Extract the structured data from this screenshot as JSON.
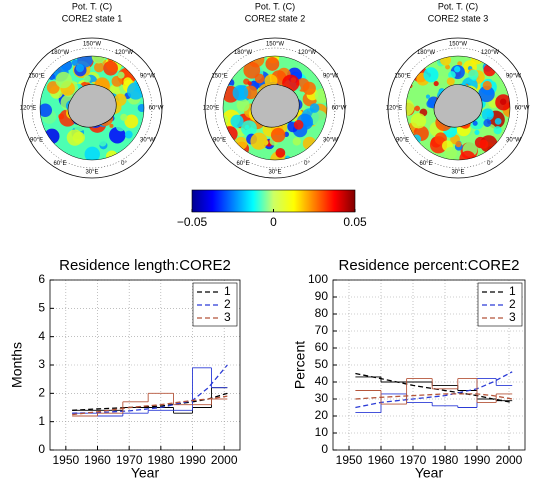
{
  "maps": [
    {
      "title": "Pot. T. (C)",
      "subtitle": "CORE2 state 1"
    },
    {
      "title": "Pot. T. (C)",
      "subtitle": "CORE2 state 2"
    },
    {
      "title": "Pot. T. (C)",
      "subtitle": "CORE2 state 3"
    }
  ],
  "map_labels": [
    "150°W",
    "120°W",
    "90°W",
    "60°W",
    "30°W",
    "0°",
    "30°E",
    "60°E",
    "90°E",
    "120°E",
    "150°E",
    "180°W"
  ],
  "colorbar": {
    "lim": [
      -0.05,
      0.05
    ],
    "ticks": [
      {
        "value": -0.05,
        "label": "−0.05"
      },
      0,
      0.05
    ]
  },
  "chart_data": [
    {
      "type": "line",
      "title": "Residence length:CORE2",
      "x_label": "Year",
      "y_label": "Months",
      "x": [
        1952,
        1960,
        1970,
        1980,
        1990,
        1995,
        2001
      ],
      "bins": [
        1952,
        1960,
        1968,
        1976,
        1984,
        1990,
        1996,
        2001
      ],
      "xlim": [
        1945,
        2005
      ],
      "xticks": [
        1950,
        1960,
        1970,
        1980,
        1990,
        2000
      ],
      "ylim": [
        0,
        6
      ],
      "yticks": [
        0,
        1,
        2,
        3,
        4,
        5,
        6
      ],
      "grid": true,
      "legend": "upper right",
      "series": [
        {
          "name": "1",
          "color": "#000000",
          "values": [
            1.4,
            1.45,
            1.5,
            1.55,
            1.7,
            1.8,
            2.0
          ],
          "steps": [
            1.4,
            1.4,
            1.5,
            1.5,
            1.3,
            1.5,
            2.2
          ]
        },
        {
          "name": "2",
          "color": "#2b3bd6",
          "values": [
            1.3,
            1.32,
            1.38,
            1.5,
            1.75,
            2.2,
            3.0
          ],
          "steps": [
            1.3,
            1.2,
            1.3,
            1.4,
            1.4,
            2.9,
            2.2
          ]
        },
        {
          "name": "3",
          "color": "#b5553a",
          "values": [
            1.25,
            1.35,
            1.5,
            1.6,
            1.75,
            1.8,
            1.9
          ],
          "steps": [
            1.2,
            1.3,
            1.7,
            2.0,
            1.6,
            1.6,
            1.8
          ]
        }
      ]
    },
    {
      "type": "line",
      "title": "Residence percent:CORE2",
      "x_label": "Year",
      "y_label": "Percent",
      "x": [
        1952,
        1960,
        1970,
        1980,
        1990,
        1995,
        2001
      ],
      "bins": [
        1952,
        1960,
        1968,
        1976,
        1984,
        1990,
        1996,
        2001
      ],
      "xlim": [
        1945,
        2005
      ],
      "xticks": [
        1950,
        1960,
        1970,
        1980,
        1990,
        2000
      ],
      "ylim": [
        0,
        100
      ],
      "yticks": [
        0,
        10,
        20,
        30,
        40,
        50,
        60,
        70,
        80,
        90,
        100
      ],
      "grid": true,
      "legend": "upper right",
      "series": [
        {
          "name": "1",
          "color": "#000000",
          "values": [
            45,
            42,
            38,
            35,
            32,
            30,
            28
          ],
          "steps": [
            43,
            40,
            40,
            38,
            35,
            30,
            29
          ]
        },
        {
          "name": "2",
          "color": "#2b3bd6",
          "values": [
            25,
            28,
            30,
            32,
            36,
            40,
            46
          ],
          "steps": [
            22,
            33,
            28,
            26,
            25,
            42,
            38
          ]
        },
        {
          "name": "3",
          "color": "#b5553a",
          "values": [
            30,
            31,
            32,
            33,
            33,
            32,
            30
          ],
          "steps": [
            35,
            27,
            42,
            36,
            42,
            28,
            33
          ]
        }
      ]
    }
  ]
}
